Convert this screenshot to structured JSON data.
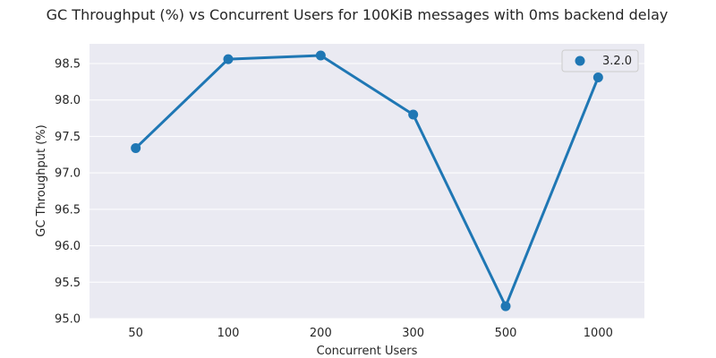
{
  "chart_data": {
    "type": "line",
    "title": "GC Throughput (%) vs Concurrent Users for 100KiB messages with 0ms backend delay",
    "xlabel": "Concurrent Users",
    "ylabel": "GC Throughput (%)",
    "categories": [
      "50",
      "100",
      "200",
      "300",
      "500",
      "1000"
    ],
    "series": [
      {
        "name": "3.2.0",
        "color": "#1f77b4",
        "values": [
          97.34,
          98.56,
          98.61,
          97.8,
          95.17,
          98.31
        ]
      }
    ],
    "ylim": [
      95.0,
      98.77
    ],
    "yticks": [
      "95.0",
      "95.5",
      "96.0",
      "96.5",
      "97.0",
      "97.5",
      "98.0",
      "98.5"
    ],
    "grid": true,
    "legend_position": "top-right",
    "background": "#eaeaf2"
  }
}
